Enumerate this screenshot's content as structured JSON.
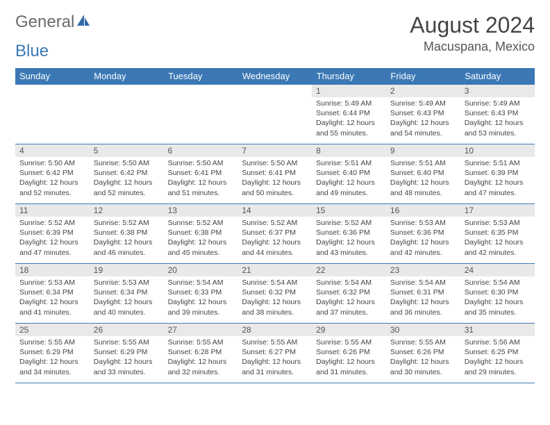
{
  "brand": {
    "part1": "General",
    "part2": "Blue"
  },
  "colors": {
    "header_bg": "#3b78b5",
    "header_text": "#ffffff",
    "daynum_bg": "#e9e9e9",
    "border": "#3b78b5",
    "text": "#444444",
    "title": "#444444"
  },
  "typography": {
    "month_title_fontsize": 32,
    "location_fontsize": 18,
    "weekday_fontsize": 13,
    "cell_fontsize": 10.5
  },
  "title": "August 2024",
  "location": "Macuspana, Mexico",
  "weekdays": [
    "Sunday",
    "Monday",
    "Tuesday",
    "Wednesday",
    "Thursday",
    "Friday",
    "Saturday"
  ],
  "weeks": [
    [
      {
        "n": "",
        "t": ""
      },
      {
        "n": "",
        "t": ""
      },
      {
        "n": "",
        "t": ""
      },
      {
        "n": "",
        "t": ""
      },
      {
        "n": "1",
        "t": "Sunrise: 5:49 AM\nSunset: 6:44 PM\nDaylight: 12 hours and 55 minutes."
      },
      {
        "n": "2",
        "t": "Sunrise: 5:49 AM\nSunset: 6:43 PM\nDaylight: 12 hours and 54 minutes."
      },
      {
        "n": "3",
        "t": "Sunrise: 5:49 AM\nSunset: 6:43 PM\nDaylight: 12 hours and 53 minutes."
      }
    ],
    [
      {
        "n": "4",
        "t": "Sunrise: 5:50 AM\nSunset: 6:42 PM\nDaylight: 12 hours and 52 minutes."
      },
      {
        "n": "5",
        "t": "Sunrise: 5:50 AM\nSunset: 6:42 PM\nDaylight: 12 hours and 52 minutes."
      },
      {
        "n": "6",
        "t": "Sunrise: 5:50 AM\nSunset: 6:41 PM\nDaylight: 12 hours and 51 minutes."
      },
      {
        "n": "7",
        "t": "Sunrise: 5:50 AM\nSunset: 6:41 PM\nDaylight: 12 hours and 50 minutes."
      },
      {
        "n": "8",
        "t": "Sunrise: 5:51 AM\nSunset: 6:40 PM\nDaylight: 12 hours and 49 minutes."
      },
      {
        "n": "9",
        "t": "Sunrise: 5:51 AM\nSunset: 6:40 PM\nDaylight: 12 hours and 48 minutes."
      },
      {
        "n": "10",
        "t": "Sunrise: 5:51 AM\nSunset: 6:39 PM\nDaylight: 12 hours and 47 minutes."
      }
    ],
    [
      {
        "n": "11",
        "t": "Sunrise: 5:52 AM\nSunset: 6:39 PM\nDaylight: 12 hours and 47 minutes."
      },
      {
        "n": "12",
        "t": "Sunrise: 5:52 AM\nSunset: 6:38 PM\nDaylight: 12 hours and 46 minutes."
      },
      {
        "n": "13",
        "t": "Sunrise: 5:52 AM\nSunset: 6:38 PM\nDaylight: 12 hours and 45 minutes."
      },
      {
        "n": "14",
        "t": "Sunrise: 5:52 AM\nSunset: 6:37 PM\nDaylight: 12 hours and 44 minutes."
      },
      {
        "n": "15",
        "t": "Sunrise: 5:52 AM\nSunset: 6:36 PM\nDaylight: 12 hours and 43 minutes."
      },
      {
        "n": "16",
        "t": "Sunrise: 5:53 AM\nSunset: 6:36 PM\nDaylight: 12 hours and 42 minutes."
      },
      {
        "n": "17",
        "t": "Sunrise: 5:53 AM\nSunset: 6:35 PM\nDaylight: 12 hours and 42 minutes."
      }
    ],
    [
      {
        "n": "18",
        "t": "Sunrise: 5:53 AM\nSunset: 6:34 PM\nDaylight: 12 hours and 41 minutes."
      },
      {
        "n": "19",
        "t": "Sunrise: 5:53 AM\nSunset: 6:34 PM\nDaylight: 12 hours and 40 minutes."
      },
      {
        "n": "20",
        "t": "Sunrise: 5:54 AM\nSunset: 6:33 PM\nDaylight: 12 hours and 39 minutes."
      },
      {
        "n": "21",
        "t": "Sunrise: 5:54 AM\nSunset: 6:32 PM\nDaylight: 12 hours and 38 minutes."
      },
      {
        "n": "22",
        "t": "Sunrise: 5:54 AM\nSunset: 6:32 PM\nDaylight: 12 hours and 37 minutes."
      },
      {
        "n": "23",
        "t": "Sunrise: 5:54 AM\nSunset: 6:31 PM\nDaylight: 12 hours and 36 minutes."
      },
      {
        "n": "24",
        "t": "Sunrise: 5:54 AM\nSunset: 6:30 PM\nDaylight: 12 hours and 35 minutes."
      }
    ],
    [
      {
        "n": "25",
        "t": "Sunrise: 5:55 AM\nSunset: 6:29 PM\nDaylight: 12 hours and 34 minutes."
      },
      {
        "n": "26",
        "t": "Sunrise: 5:55 AM\nSunset: 6:29 PM\nDaylight: 12 hours and 33 minutes."
      },
      {
        "n": "27",
        "t": "Sunrise: 5:55 AM\nSunset: 6:28 PM\nDaylight: 12 hours and 32 minutes."
      },
      {
        "n": "28",
        "t": "Sunrise: 5:55 AM\nSunset: 6:27 PM\nDaylight: 12 hours and 31 minutes."
      },
      {
        "n": "29",
        "t": "Sunrise: 5:55 AM\nSunset: 6:26 PM\nDaylight: 12 hours and 31 minutes."
      },
      {
        "n": "30",
        "t": "Sunrise: 5:55 AM\nSunset: 6:26 PM\nDaylight: 12 hours and 30 minutes."
      },
      {
        "n": "31",
        "t": "Sunrise: 5:56 AM\nSunset: 6:25 PM\nDaylight: 12 hours and 29 minutes."
      }
    ]
  ]
}
